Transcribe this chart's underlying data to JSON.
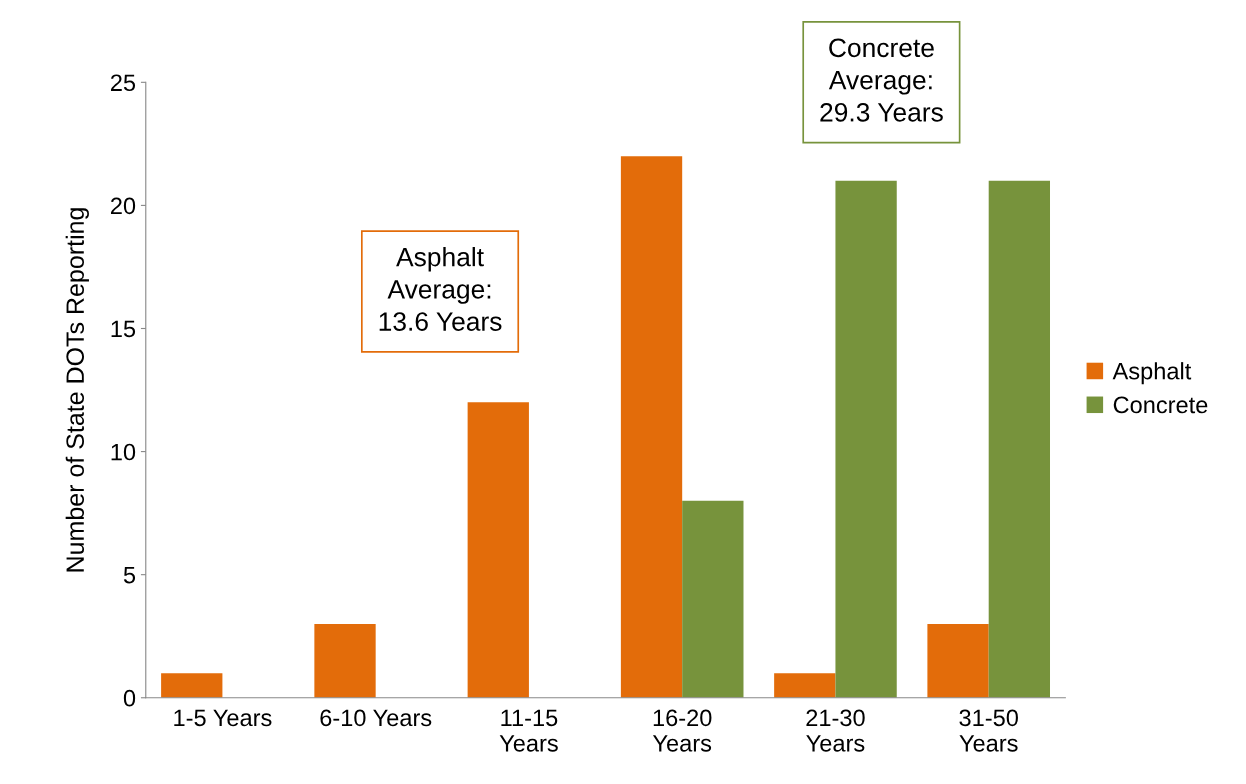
{
  "chart_data": {
    "type": "bar",
    "ylabel": "Number of State DOTs Reporting",
    "categories": [
      "1-5 Years",
      "6-10 Years",
      "11-15\nYears",
      "16-20\nYears",
      "21-30\nYears",
      "31-50\nYears"
    ],
    "series": [
      {
        "name": "Asphalt",
        "color": "#e36c0a",
        "values": [
          1,
          3,
          12,
          22,
          1,
          3
        ]
      },
      {
        "name": "Concrete",
        "color": "#77933c",
        "values": [
          null,
          null,
          null,
          8,
          21,
          21
        ]
      }
    ],
    "ylim": [
      0,
      25
    ],
    "yticks": [
      0,
      5,
      10,
      15,
      20,
      25
    ],
    "grid": false,
    "legend": "right",
    "annotations": [
      "Asphalt\nAverage:\n13.6 Years",
      "Concrete\nAverage:\n29.3 Years"
    ]
  }
}
